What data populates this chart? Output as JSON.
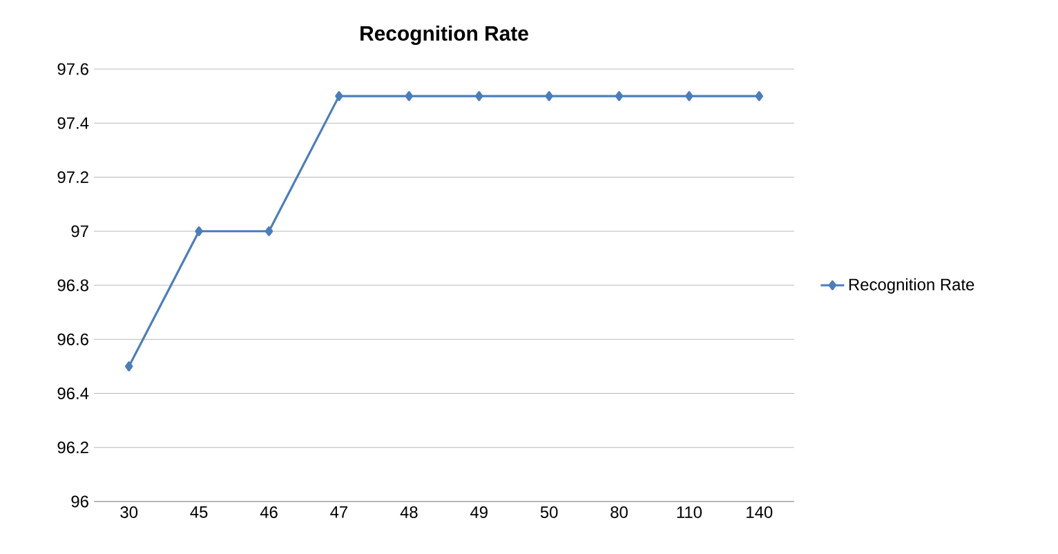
{
  "chart_data": {
    "type": "line",
    "title": "Recognition Rate",
    "categories": [
      "30",
      "45",
      "46",
      "47",
      "48",
      "49",
      "50",
      "80",
      "110",
      "140"
    ],
    "series": [
      {
        "name": "Recognition Rate",
        "color": "#4a7ebb",
        "values": [
          96.5,
          97,
          97,
          97.5,
          97.5,
          97.5,
          97.5,
          97.5,
          97.5,
          97.5
        ]
      }
    ],
    "ylim": [
      96,
      97.6
    ],
    "yticks": [
      96,
      96.2,
      96.4,
      96.6,
      96.8,
      97,
      97.2,
      97.4,
      97.6
    ],
    "grid": "y",
    "legend": "right",
    "marker": "diamond",
    "line_style": "solid"
  }
}
